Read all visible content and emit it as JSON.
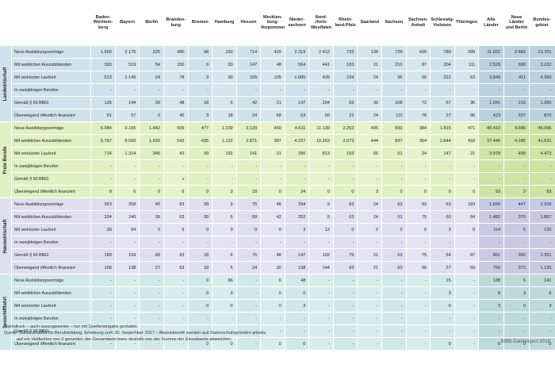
{
  "header": {
    "states": [
      [
        "Baden-",
        "Württem-",
        "berg"
      ],
      [
        "Bayern"
      ],
      [
        "Berlin"
      ],
      [
        "Branden-",
        "burg"
      ],
      [
        "Bremen"
      ],
      [
        "Hamburg"
      ],
      [
        "Hessen"
      ],
      [
        "Mecklen-",
        "burg-",
        "Vorpommern"
      ],
      [
        "Nieder-",
        "sachsen"
      ],
      [
        "Nord-",
        "rhein-",
        "Westfalen"
      ],
      [
        "Rhein-",
        "land-Pfalz"
      ],
      [
        "Saarland"
      ],
      [
        "Sachsen"
      ],
      [
        "Sachsen-",
        "Anhalt"
      ],
      [
        "Schleswig-",
        "Holstein"
      ],
      [
        "Thüringen"
      ],
      [
        "Alte",
        "Länder"
      ],
      [
        "Neue",
        "Länder",
        "und Berlin"
      ],
      [
        "Bundes-",
        "gebiet"
      ]
    ]
  },
  "sections": [
    {
      "name": "Landwirtschaft",
      "cls": "s-landwirtschaft",
      "rows": [
        {
          "label": "Neue Ausbildungsverträge",
          "values": [
            "1.566",
            "2.175",
            "225",
            "480",
            "48",
            "150",
            "714",
            "429",
            "2.319",
            "2.412",
            "732",
            "126",
            "726",
            "420",
            "780",
            "399",
            "11.022",
            "2.682",
            "13.701"
          ]
        },
        {
          "label": "Mit weiblichen Auszubildenden",
          "values": [
            "393",
            "519",
            "54",
            "150",
            "9",
            "33",
            "147",
            "48",
            "564",
            "441",
            "183",
            "21",
            "210",
            "87",
            "204",
            "111",
            "2.529",
            "696",
            "3.222"
          ]
        },
        {
          "label": "Mit verkürzter Laufzeit",
          "values": [
            "513",
            "1.149",
            "24",
            "78",
            "3",
            "30",
            "156",
            "105",
            "1.080",
            "435",
            "234",
            "24",
            "96",
            "60",
            "222",
            "63",
            "3.849",
            "411",
            "4.260"
          ]
        },
        {
          "label": "In zweijährigen Berufen",
          "values": [
            "-",
            "-",
            "-",
            "-",
            "-",
            "-",
            "-",
            "-",
            "-",
            "-",
            "-",
            "-",
            "-",
            "-",
            "-",
            "-",
            "-",
            "-",
            "-"
          ]
        },
        {
          "label": "Gemäß § 66 BBiG",
          "values": [
            "135",
            "144",
            "30",
            "48",
            "18",
            "6",
            "42",
            "21",
            "147",
            "204",
            "63",
            "30",
            "108",
            "72",
            "57",
            "36",
            "1.041",
            "219",
            "1.260"
          ]
        },
        {
          "label": "Überwiegend öffentlich finanziert",
          "values": [
            "51",
            "57",
            "0",
            "45",
            "3",
            "18",
            "24",
            "69",
            "63",
            "60",
            "21",
            "24",
            "111",
            "78",
            "27",
            "96",
            "423",
            "297",
            "870"
          ]
        }
      ]
    },
    {
      "name": "Freie Berufe",
      "cls": "s-freie",
      "rows": [
        {
          "label": "Neue Ausbildungsverträge",
          "values": [
            "6.084",
            "9.165",
            "1.842",
            "609",
            "477",
            "1.239",
            "3.129",
            "450",
            "4.611",
            "11.139",
            "2.253",
            "495",
            "930",
            "384",
            "1.815",
            "471",
            "40.410",
            "4.686",
            "45.096"
          ]
        },
        {
          "label": "Mit weiblichen Auszubildenden",
          "values": [
            "5.787",
            "8.583",
            "1.632",
            "543",
            "435",
            "1.122",
            "2.871",
            "387",
            "4.227",
            "10.263",
            "2.073",
            "444",
            "837",
            "354",
            "1.644",
            "432",
            "37.446",
            "4.185",
            "41.631"
          ]
        },
        {
          "label": "Mit verkürzter Laufzeit",
          "values": [
            "714",
            "1.314",
            "345",
            "42",
            "39",
            "192",
            "141",
            "21",
            "396",
            "813",
            "153",
            "66",
            "51",
            "24",
            "147",
            "21",
            "3.978",
            "495",
            "4.473"
          ]
        },
        {
          "label": "In zweijährigen Berufen",
          "values": [
            "-",
            "-",
            "-",
            "-",
            "-",
            "-",
            "-",
            "-",
            "-",
            "-",
            "-",
            "-",
            "-",
            "-",
            "-",
            "-",
            "-",
            "-",
            "-"
          ]
        },
        {
          "label": "Gemäß § 66 BBiG",
          "values": [
            "-",
            "-",
            "-",
            "v",
            "-",
            "-",
            "-",
            "-",
            "-",
            "-",
            "-",
            "-",
            "-",
            "-",
            "-",
            "-",
            "-",
            "-",
            "-"
          ]
        },
        {
          "label": "Überwiegend öffentlich finanziert",
          "values": [
            "9",
            "6",
            "0",
            "6",
            "0",
            "3",
            "18",
            "0",
            "24",
            "0",
            "0",
            "3",
            "0",
            "0",
            "0",
            "0",
            "93",
            "3",
            "93"
          ]
        }
      ]
    },
    {
      "name": "Hauswirtschaft",
      "cls": "s-haus",
      "rows": [
        {
          "label": "Neue Ausbildungsverträge",
          "values": [
            "363",
            "258",
            "45",
            "63",
            "39",
            "9",
            "75",
            "48",
            "294",
            "9",
            "63",
            "24",
            "63",
            "93",
            "63",
            "183",
            "1.659",
            "447",
            "2.106"
          ]
        },
        {
          "label": "Mit weiblichen Auszubildenden",
          "values": [
            "324",
            "240",
            "39",
            "63",
            "30",
            "6",
            "69",
            "42",
            "252",
            "9",
            "63",
            "24",
            "51",
            "75",
            "60",
            "84",
            "1.482",
            "375",
            "1.857"
          ]
        },
        {
          "label": "Mit verkürzter Laufzeit",
          "values": [
            "39",
            "54",
            "0",
            "6",
            "0",
            "3",
            "0",
            "0",
            "3",
            "12",
            "0",
            "0",
            "0",
            "0",
            "3",
            "0",
            "114",
            "6",
            "120"
          ]
        },
        {
          "label": "In zweijährigen Berufen",
          "values": [
            "-",
            "-",
            "-",
            "-",
            "-",
            "-",
            "-",
            "-",
            "-",
            "-",
            "-",
            "-",
            "-",
            "-",
            "-",
            "-",
            "-",
            "-",
            "-"
          ]
        },
        {
          "label": "Gemäß § 66 BBiG",
          "values": [
            "189",
            "159",
            "45",
            "63",
            "18",
            "6",
            "75",
            "48",
            "147",
            "192",
            "75",
            "21",
            "63",
            "75",
            "54",
            "87",
            "861",
            "390",
            "1.251"
          ]
        },
        {
          "label": "Überwiegend öffentlich finanziert",
          "values": [
            "168",
            "138",
            "27",
            "63",
            "18",
            "6",
            "24",
            "30",
            "138",
            "144",
            "93",
            "21",
            "63",
            "90",
            "27",
            "93",
            "750",
            "372",
            "1.125"
          ]
        }
      ]
    },
    {
      "name": "Seeschifffahrt",
      "cls": "s-see",
      "rows": [
        {
          "label": "Neue Ausbildungsverträge",
          "values": [
            "-",
            "-",
            "-",
            "-",
            "9",
            "66",
            "-",
            "6",
            "48",
            "-",
            "-",
            "-",
            "-",
            "-",
            "15",
            "-",
            "138",
            "6",
            "141"
          ]
        },
        {
          "label": "Mit weiblichen Auszubildenden",
          "values": [
            "-",
            "-",
            "-",
            "-",
            "0",
            "3",
            "-",
            "0",
            "0",
            "-",
            "-",
            "-",
            "-",
            "-",
            "3",
            "-",
            "9",
            "3",
            "6"
          ]
        },
        {
          "label": "Mit verkürzter Laufzeit",
          "values": [
            "-",
            "-",
            "-",
            "-",
            "0",
            "0",
            "-",
            "0",
            "3",
            "-",
            "-",
            "-",
            "-",
            "-",
            "0",
            "-",
            "3",
            "0",
            "3"
          ]
        },
        {
          "label": "In zweijährigen Berufen",
          "values": [
            "-",
            "-",
            "-",
            "-",
            "-",
            "-",
            "-",
            "-",
            "-",
            "-",
            "-",
            "-",
            "-",
            "-",
            "-",
            "-",
            "-",
            "-",
            "-"
          ]
        },
        {
          "label": "Gemäß § 66 BBiG",
          "values": [
            "-",
            "-",
            "-",
            "-",
            "-",
            "-",
            "-",
            "-",
            "-",
            "-",
            "-",
            "-",
            "-",
            "-",
            "-",
            "-",
            "-",
            "-",
            "-"
          ]
        },
        {
          "label": "Überwiegend öffentlich finanziert",
          "values": [
            "-",
            "-",
            "-",
            "-",
            "0",
            "0",
            "-",
            "0",
            "0",
            "-",
            "-",
            "-",
            "-",
            "-",
            "0",
            "-",
            "0",
            "0",
            "0"
          ]
        }
      ]
    }
  ],
  "footer": {
    "line1": "Nachdruck – auch auszugsweise – nur mit Quellenangabe gestattet.",
    "line2": "Quelle: Bundesinstitut für Berufsbildung, Erhebung zum 30. September 2017 – Absolutwerte werden aus Datenschutzgründen jeweils",
    "line3": "auf ein Vielfaches von 3 gerundet; der Gesamtwert kann deshalb von der Summe der Einzelwerte abweichen.",
    "credit": "BIBB-Datenreport 2018"
  }
}
